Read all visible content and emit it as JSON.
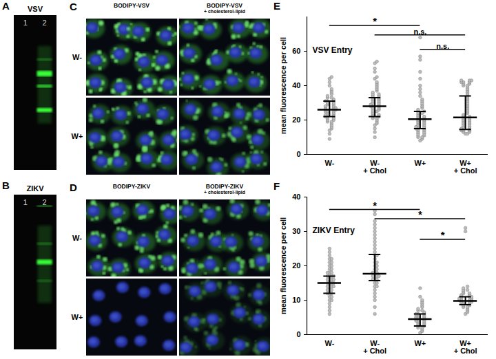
{
  "gels": [
    {
      "panel": "A",
      "title": "VSV",
      "lanes": [
        "1",
        "2"
      ]
    },
    {
      "panel": "B",
      "title": "ZIKV",
      "lanes": [
        "1",
        "2"
      ]
    }
  ],
  "micrographs": [
    {
      "panel": "C",
      "columns": [
        "BODIPY-VSV",
        "BODIPY-VSV\n+ cholesterol-lipid"
      ],
      "rows": [
        "W-",
        "W+"
      ]
    },
    {
      "panel": "D",
      "columns": [
        "BODIPY-ZIKV",
        "BODIPY-ZIKV\n+ cholesterol-lipid"
      ],
      "rows": [
        "W-",
        "W+"
      ]
    }
  ],
  "chart_data": [
    {
      "type": "scatter",
      "panel": "E",
      "title": "VSV Entry",
      "y_label": "mean fluorescence per cell",
      "categories": [
        "W-",
        "W-\n+ Chol",
        "W+",
        "W+\n+ Chol"
      ],
      "values": [
        [
          9,
          12,
          14,
          15,
          16,
          17,
          18,
          19,
          19,
          20,
          20,
          21,
          21,
          22,
          22,
          22,
          23,
          23,
          24,
          24,
          25,
          25,
          25,
          26,
          26,
          26,
          27,
          27,
          27,
          28,
          28,
          29,
          29,
          30,
          30,
          31,
          31,
          31,
          32,
          33,
          33,
          34,
          35,
          36,
          37,
          38,
          40,
          42,
          44,
          45
        ],
        [
          10,
          13,
          15,
          17,
          18,
          19,
          20,
          21,
          21,
          22,
          22,
          23,
          23,
          24,
          25,
          25,
          26,
          26,
          27,
          27,
          28,
          28,
          28,
          29,
          29,
          30,
          30,
          31,
          31,
          32,
          32,
          33,
          33,
          34,
          34,
          35,
          35,
          36,
          37,
          38,
          39,
          40,
          41,
          42,
          44,
          45,
          48,
          50,
          53,
          54
        ],
        [
          8,
          9,
          10,
          10,
          11,
          11,
          12,
          12,
          13,
          13,
          14,
          14,
          15,
          15,
          15,
          16,
          16,
          17,
          17,
          18,
          18,
          19,
          19,
          20,
          20,
          21,
          21,
          22,
          22,
          23,
          24,
          24,
          25,
          25,
          26,
          27,
          28,
          29,
          30,
          31,
          32,
          34,
          36,
          38,
          40,
          44,
          48,
          55,
          57,
          68
        ],
        [
          12,
          12,
          13,
          13,
          14,
          14,
          14,
          15,
          15,
          16,
          16,
          17,
          17,
          18,
          18,
          19,
          19,
          20,
          20,
          21,
          21,
          22,
          22,
          23,
          24,
          25,
          26,
          27,
          28,
          29,
          30,
          31,
          32,
          33,
          34,
          35,
          36,
          37,
          38,
          39,
          40,
          40,
          41,
          41,
          42,
          42,
          42,
          43,
          43,
          43
        ]
      ],
      "median": [
        26,
        28,
        20.5,
        21.5
      ],
      "q1": [
        22,
        22,
        15,
        14.5
      ],
      "q3": [
        31,
        33,
        25,
        34
      ],
      "color": "#bdbdbd",
      "ylim": [
        0,
        80
      ],
      "yticks": [
        0,
        20,
        40,
        60
      ],
      "brackets": [
        {
          "from": "W-",
          "to": "W+",
          "y": 75,
          "label": "*"
        },
        {
          "from": "W-\n+ Chol",
          "to": "W+\n+ Chol",
          "y": 69.5,
          "label": "n.s."
        },
        {
          "from": "W+",
          "to": "W+\n+ Chol",
          "y": 61,
          "label": "n.s."
        }
      ]
    },
    {
      "type": "scatter",
      "panel": "F",
      "title": "ZIKV Entry",
      "y_label": "mean fluorescence per cell",
      "categories": [
        "W-",
        "W-\n+ Chol",
        "W+",
        "W+\n+ Chol"
      ],
      "values": [
        [
          6,
          7,
          8,
          9,
          10,
          10,
          11,
          11,
          12,
          12,
          12,
          13,
          13,
          13,
          14,
          14,
          14,
          14,
          15,
          15,
          15,
          15,
          16,
          16,
          16,
          16,
          17,
          17,
          17,
          17,
          18,
          18,
          18,
          19,
          19,
          20,
          20,
          21,
          21,
          22,
          22,
          23,
          24,
          25
        ],
        [
          6,
          8,
          10,
          11,
          12,
          13,
          14,
          14,
          15,
          15,
          16,
          16,
          16,
          17,
          17,
          17,
          17,
          18,
          18,
          18,
          19,
          19,
          20,
          20,
          21,
          21,
          22,
          23,
          23,
          24,
          25,
          26,
          27,
          28,
          29,
          30,
          31,
          32,
          33,
          35,
          36
        ],
        [
          0.5,
          1,
          1.5,
          2,
          2,
          2.5,
          2.5,
          3,
          3,
          3.5,
          3.5,
          4,
          4,
          4,
          4.5,
          4.5,
          5,
          5,
          5,
          5.5,
          5.5,
          6,
          6,
          6,
          6.5,
          7,
          7,
          7.5,
          8,
          8.5,
          9,
          9.5,
          10,
          11,
          13.5
        ],
        [
          6,
          6.5,
          7,
          7.5,
          8,
          8,
          8.5,
          8.5,
          9,
          9,
          9,
          9.5,
          9.5,
          9.5,
          10,
          10,
          10,
          10,
          10.5,
          10.5,
          10.5,
          11,
          11,
          11,
          11.5,
          11.5,
          12,
          12,
          12.5,
          13,
          13,
          13.5,
          14,
          30,
          31
        ]
      ],
      "median": [
        15,
        17.7,
        4.5,
        9.8
      ],
      "q1": [
        12,
        15.7,
        2.5,
        8.7
      ],
      "q3": [
        17,
        23.3,
        6,
        11
      ],
      "color": "#bdbdbd",
      "ylim": [
        0,
        40
      ],
      "yticks": [
        0,
        10,
        20,
        30,
        40
      ],
      "brackets": [
        {
          "from": "W-",
          "to": "W+",
          "y": 36.4,
          "label": "*"
        },
        {
          "from": "W-\n+ Chol",
          "to": "W+\n+ Chol",
          "y": 33.7,
          "label": "*"
        },
        {
          "from": "W+",
          "to": "W+\n+ Chol",
          "y": 27.7,
          "label": "*"
        }
      ]
    }
  ]
}
